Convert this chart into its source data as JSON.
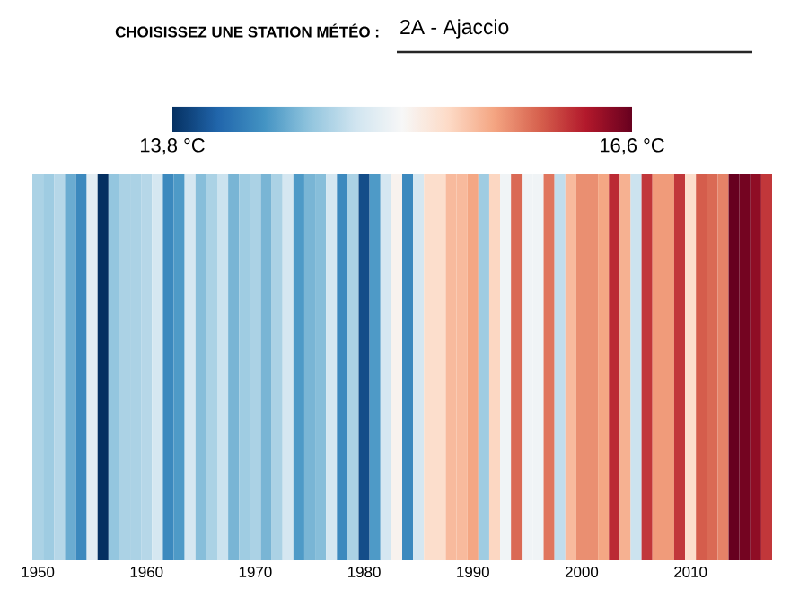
{
  "chart_data": {
    "type": "heatmap",
    "title": "CHOISISSEZ UNE STATION MÉTÉO :",
    "subtitle": "2A - Ajaccio",
    "categories": [
      "1950",
      null,
      null,
      null,
      null,
      null,
      null,
      null,
      null,
      null,
      "1960",
      null,
      null,
      null,
      null,
      null,
      null,
      null,
      null,
      null,
      "1970",
      null,
      null,
      null,
      null,
      null,
      null,
      null,
      null,
      null,
      "1980",
      null,
      null,
      null,
      null,
      null,
      null,
      null,
      null,
      null,
      "1990",
      null,
      null,
      null,
      null,
      null,
      null,
      null,
      null,
      null,
      "2000",
      null,
      null,
      null,
      null,
      null,
      null,
      null,
      null,
      null,
      "2010",
      null,
      null,
      null,
      null,
      null,
      null,
      null
    ],
    "cells": [
      [
        14.75,
        14.7,
        14.8,
        14.5,
        14.3,
        15.05,
        13.8,
        14.65,
        14.75,
        14.75,
        14.8,
        14.95,
        14.3,
        14.4,
        14.95,
        14.6,
        14.75,
        14.9,
        14.55,
        14.7,
        14.75,
        14.55,
        14.75,
        14.95,
        14.4,
        14.55,
        14.6,
        14.95,
        14.3,
        14.75,
        13.95,
        14.4,
        14.95,
        15.25,
        14.3,
        14.95,
        15.45,
        15.45,
        15.65,
        15.65,
        15.75,
        14.7,
        15.5,
        15.15,
        16.0,
        15.15,
        15.15,
        15.95,
        14.85,
        15.65,
        15.85,
        15.85,
        15.75,
        16.25,
        15.7,
        14.9,
        16.2,
        15.8,
        15.8,
        16.2,
        15.45,
        16.05,
        16.0,
        15.9,
        16.6,
        16.55,
        16.45,
        16.2
      ]
    ],
    "y_categories": [
      null
    ],
    "clim": [
      13.8,
      16.6
    ],
    "cticks": [
      {
        "value": 13.8,
        "label": "13,8 °C"
      },
      {
        "value": 16.6,
        "label": "16,6 °C"
      }
    ]
  }
}
